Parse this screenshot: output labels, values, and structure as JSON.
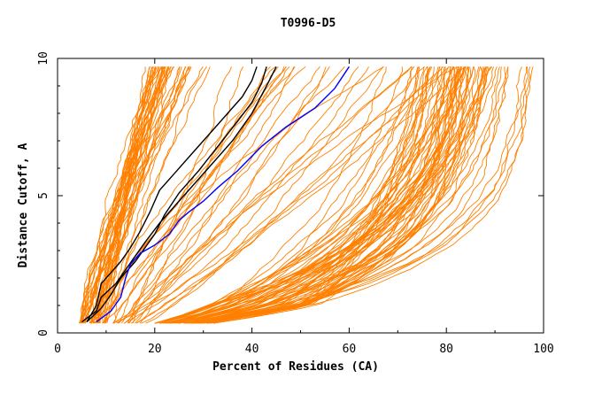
{
  "chart_data": {
    "type": "line",
    "title": "T0996-D5",
    "xlabel": "Percent of Residues (CA)",
    "ylabel": "Distance Cutoff, A",
    "xlim": [
      0,
      100
    ],
    "ylim": [
      0,
      10
    ],
    "x_ticks": [
      0,
      20,
      40,
      60,
      80,
      100
    ],
    "y_ticks": [
      0,
      5,
      10
    ],
    "x_tick_labels": [
      "0",
      "20",
      "40",
      "60",
      "80",
      "100"
    ],
    "y_tick_labels": [
      "0",
      "5",
      "10"
    ],
    "grid": false,
    "legend": "none",
    "colors": {
      "background_curves": "#ff8000",
      "highlight_black": "#000000",
      "highlight_blue": "#0000ff"
    },
    "series": [
      {
        "color": "#000000",
        "x": [
          5,
          8,
          9,
          12,
          14,
          16,
          18,
          21,
          26,
          31,
          36,
          40,
          43,
          45
        ],
        "y": [
          0.4,
          0.8,
          1.3,
          1.8,
          2.3,
          2.8,
          3.3,
          4.0,
          5.0,
          6.0,
          7.0,
          8.0,
          9.0,
          9.7
        ]
      },
      {
        "color": "#000000",
        "x": [
          6,
          9,
          11,
          13,
          16,
          18,
          20,
          22,
          25,
          29,
          33,
          37,
          40,
          42,
          43
        ],
        "y": [
          0.4,
          0.9,
          1.4,
          2.0,
          2.6,
          3.1,
          3.6,
          4.3,
          5.1,
          5.9,
          6.8,
          7.7,
          8.4,
          9.1,
          9.7
        ]
      },
      {
        "color": "#000000",
        "x": [
          6,
          8,
          9,
          11,
          13,
          15,
          17,
          19,
          21,
          24,
          28,
          32,
          35,
          38,
          40,
          41
        ],
        "y": [
          0.4,
          1.0,
          1.8,
          2.2,
          2.6,
          3.1,
          3.7,
          4.4,
          5.2,
          5.8,
          6.6,
          7.4,
          8.0,
          8.6,
          9.2,
          9.7
        ]
      },
      {
        "color": "#0000ff",
        "x": [
          8,
          11,
          13,
          14,
          15,
          17,
          20,
          23,
          25,
          27,
          30,
          33,
          37,
          42,
          47,
          53,
          57,
          60
        ],
        "y": [
          0.4,
          0.8,
          1.3,
          2.0,
          2.5,
          2.9,
          3.2,
          3.6,
          4.1,
          4.4,
          4.8,
          5.3,
          5.9,
          6.8,
          7.5,
          8.2,
          8.9,
          9.7
        ]
      }
    ]
  }
}
